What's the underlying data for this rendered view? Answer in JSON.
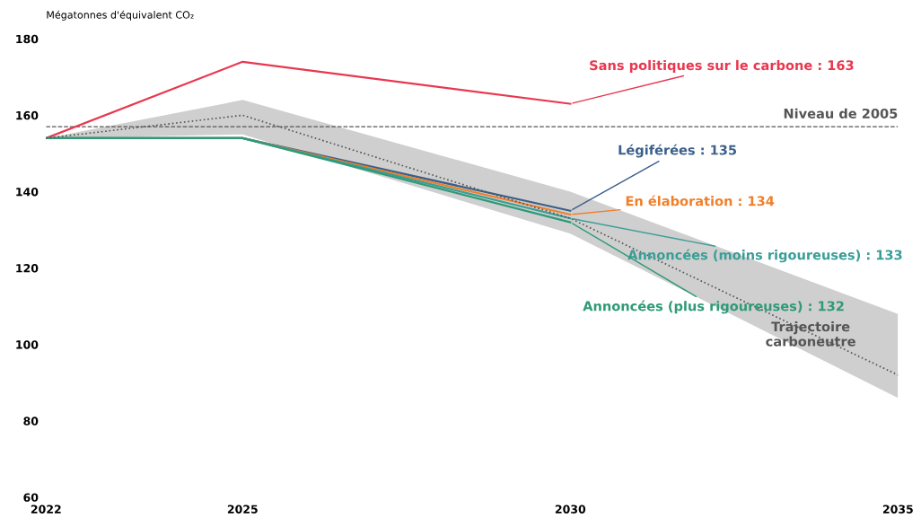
{
  "chart_data": {
    "type": "line",
    "ylabel": "Mégatonnes d'équivalent CO₂",
    "x": [
      2022,
      2025,
      2030
    ],
    "xlim": [
      2022,
      2035
    ],
    "xticks": [
      2022,
      2025,
      2030,
      2035
    ],
    "ylim": [
      60,
      180
    ],
    "yticks": [
      60,
      80,
      100,
      120,
      140,
      160,
      180
    ],
    "grid": false,
    "legend": false,
    "series": [
      {
        "name": "Sans politiques sur le carbone : 163",
        "color": "#e8384f",
        "values": [
          154,
          174,
          163
        ]
      },
      {
        "name": "Légiférées : 135",
        "color": "#3a5f8a",
        "values": [
          154,
          154,
          135
        ]
      },
      {
        "name": "En élaboration : 134",
        "color": "#f07f2a",
        "values": [
          154,
          154,
          134
        ]
      },
      {
        "name": "Annoncées (moins rigoureuses) : 133",
        "color": "#3a9e96",
        "values": [
          154,
          154,
          133
        ]
      },
      {
        "name": "Annoncées (plus rigoureuses) : 132",
        "color": "#2e9a78",
        "values": [
          154,
          154,
          132
        ]
      },
      {
        "name": "Trajectoire\ncarboneutre",
        "color": "#555555",
        "line_style": "dotted",
        "x": [
          2022,
          2025,
          2030,
          2035
        ],
        "values": [
          154,
          160,
          133,
          92
        ],
        "lower": [
          154,
          155,
          129,
          86
        ],
        "upper": [
          154,
          164,
          140,
          108
        ]
      }
    ],
    "ref_lines": [
      {
        "axis": "y",
        "value": 157,
        "label": "Niveau de 2005",
        "color": "#555555",
        "line_style": "dashed"
      }
    ]
  }
}
